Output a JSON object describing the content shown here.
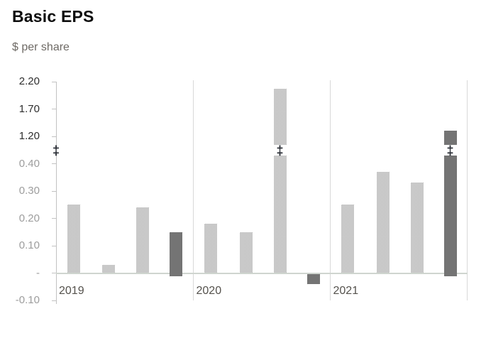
{
  "title": "Basic EPS",
  "subtitle": "$ per share",
  "chart_data": {
    "type": "bar",
    "title": "Basic EPS",
    "ylabel": "$ per share",
    "grid": "panel-separators-only",
    "axis_break": {
      "symbol": "‡",
      "hidden_range": [
        0.4,
        1.2
      ],
      "note": "y axis broken between 0.40 and 1.20; bars crossing the break show the symbol"
    },
    "yticks": [
      {
        "label": "2.20",
        "value": 2.2,
        "shade": "dark"
      },
      {
        "label": "1.70",
        "value": 1.7,
        "shade": "dark"
      },
      {
        "label": "1.20",
        "value": 1.2,
        "shade": "dark"
      },
      {
        "label": "0.40",
        "value": 0.4,
        "shade": "light"
      },
      {
        "label": "0.30",
        "value": 0.3,
        "shade": "light"
      },
      {
        "label": "0.20",
        "value": 0.2,
        "shade": "light"
      },
      {
        "label": "0.10",
        "value": 0.1,
        "shade": "light"
      },
      {
        "label": "-",
        "value": 0,
        "shade": "light"
      },
      {
        "label": "-0.10",
        "value": -0.1,
        "shade": "light"
      }
    ],
    "ylim_lower_section": [
      -0.1,
      0.4
    ],
    "ylim_upper_section": [
      1.2,
      2.2
    ],
    "groups": [
      {
        "label": "2019",
        "bars": [
          {
            "value": 0.25,
            "tone": "light"
          },
          {
            "value": 0.03,
            "tone": "light"
          },
          {
            "value": 0.24,
            "tone": "light"
          },
          {
            "value": 0.15,
            "tone": "dark",
            "overhang": true
          }
        ]
      },
      {
        "label": "2020",
        "bars": [
          {
            "value": 0.18,
            "tone": "light"
          },
          {
            "value": 0.15,
            "tone": "light"
          },
          {
            "value": 2.07,
            "tone": "light",
            "broken": true
          },
          {
            "value": -0.04,
            "tone": "dark"
          }
        ]
      },
      {
        "label": "2021",
        "bars": [
          {
            "value": 0.25,
            "tone": "light"
          },
          {
            "value": 0.37,
            "tone": "light"
          },
          {
            "value": 0.33,
            "tone": "light"
          },
          {
            "value": 1.31,
            "tone": "dark",
            "broken": true,
            "overhang": true
          }
        ]
      }
    ],
    "colors": {
      "background": "#ffffff",
      "light_bar_avg": "#c9c9c9",
      "dark_bar_avg": "#7b7b7b",
      "axis_line": "#c2c2c2",
      "panel_separator": "#d8d8d8",
      "zero_line": "#cfd5cf",
      "tick_label_upper": "#2e2e2e",
      "tick_label_lower": "#9d9d9d",
      "year_label": "#55524d",
      "break_symbol": "#20242c",
      "title": "#0d0d0d",
      "subtitle": "#6e6a65"
    }
  }
}
